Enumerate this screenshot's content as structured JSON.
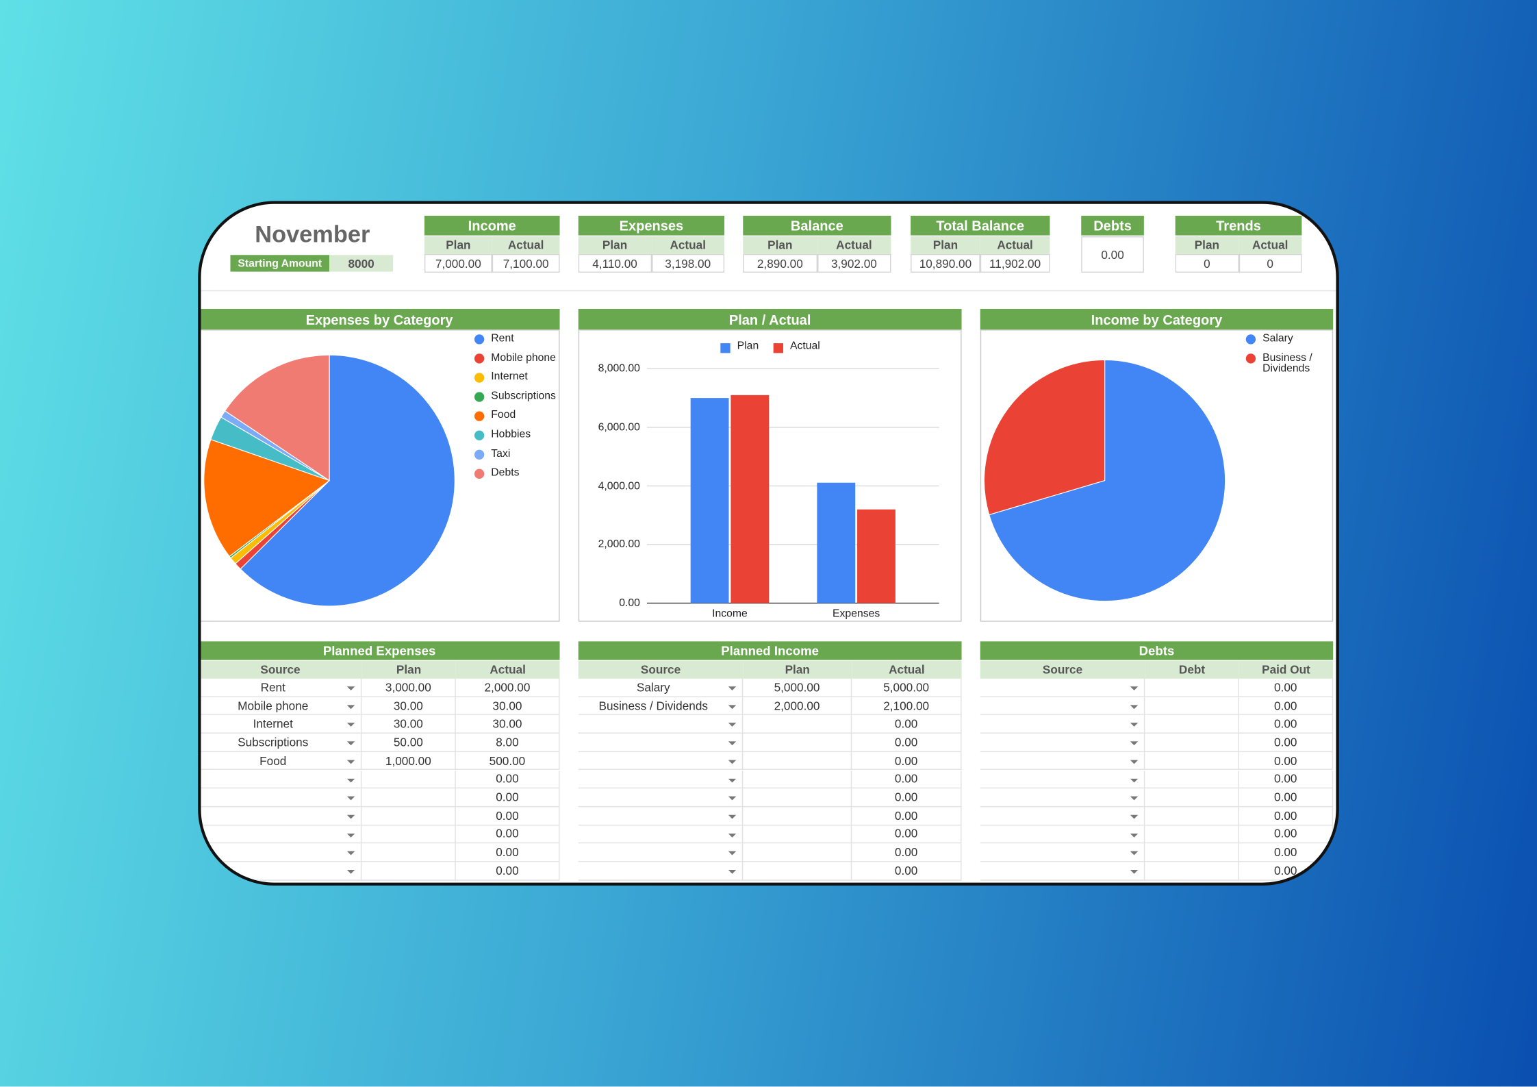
{
  "header": {
    "month": "November",
    "starting_amount_label": "Starting Amount",
    "starting_amount": "8000"
  },
  "summary": [
    {
      "title": "Income",
      "columns": [
        "Plan",
        "Actual"
      ],
      "values": [
        "7,000.00",
        "7,100.00"
      ]
    },
    {
      "title": "Expenses",
      "columns": [
        "Plan",
        "Actual"
      ],
      "values": [
        "4,110.00",
        "3,198.00"
      ]
    },
    {
      "title": "Balance",
      "columns": [
        "Plan",
        "Actual"
      ],
      "values": [
        "2,890.00",
        "3,902.00"
      ]
    },
    {
      "title": "Total Balance",
      "columns": [
        "Plan",
        "Actual"
      ],
      "values": [
        "10,890.00",
        "11,902.00"
      ]
    },
    {
      "title": "Debts",
      "values": [
        "0.00"
      ]
    },
    {
      "title": "Trends",
      "columns": [
        "Plan",
        "Actual"
      ],
      "values": [
        "0",
        "0"
      ]
    }
  ],
  "chart_data": [
    {
      "type": "pie",
      "title": "Expenses by Category",
      "categories": [
        "Rent",
        "Mobile phone",
        "Internet",
        "Subscriptions",
        "Food",
        "Hobbies",
        "Taxi",
        "Debts"
      ],
      "values": [
        2000,
        30,
        30,
        8,
        500,
        100,
        30,
        500
      ],
      "colors": [
        "#4285f4",
        "#ea4335",
        "#fbbc04",
        "#34a853",
        "#ff6d01",
        "#46bdc6",
        "#7baaf7",
        "#f07b72"
      ]
    },
    {
      "type": "bar",
      "title": "Plan / Actual",
      "categories": [
        "Income",
        "Expenses"
      ],
      "series": [
        {
          "name": "Plan",
          "color": "#4285f4",
          "values": [
            7000,
            4110
          ]
        },
        {
          "name": "Actual",
          "color": "#ea4335",
          "values": [
            7100,
            3198
          ]
        }
      ],
      "ylim": [
        0,
        8000
      ],
      "yticks": [
        {
          "value": 0,
          "label": "0.00"
        },
        {
          "value": 2000,
          "label": "2,000.00"
        },
        {
          "value": 4000,
          "label": "4,000.00"
        },
        {
          "value": 6000,
          "label": "6,000.00"
        },
        {
          "value": 8000,
          "label": "8,000.00"
        }
      ],
      "grid": true
    },
    {
      "type": "pie",
      "title": "Income by Category",
      "categories": [
        "Salary",
        "Business / Dividends"
      ],
      "values": [
        5000,
        2100
      ],
      "colors": [
        "#4285f4",
        "#ea4335"
      ]
    }
  ],
  "tables": [
    {
      "title": "Planned Expenses",
      "columns": [
        "Source",
        "Plan",
        "Actual"
      ],
      "rows": [
        [
          "Rent",
          "3,000.00",
          "2,000.00"
        ],
        [
          "Mobile phone",
          "30.00",
          "30.00"
        ],
        [
          "Internet",
          "30.00",
          "30.00"
        ],
        [
          "Subscriptions",
          "50.00",
          "8.00"
        ],
        [
          "Food",
          "1,000.00",
          "500.00"
        ],
        [
          null,
          null,
          "0.00"
        ],
        [
          null,
          null,
          "0.00"
        ],
        [
          null,
          null,
          "0.00"
        ],
        [
          null,
          null,
          "0.00"
        ],
        [
          null,
          null,
          "0.00"
        ],
        [
          null,
          null,
          "0.00"
        ]
      ]
    },
    {
      "title": "Planned Income",
      "columns": [
        "Source",
        "Plan",
        "Actual"
      ],
      "rows": [
        [
          "Salary",
          "5,000.00",
          "5,000.00"
        ],
        [
          "Business / Dividends",
          "2,000.00",
          "2,100.00"
        ],
        [
          null,
          null,
          "0.00"
        ],
        [
          null,
          null,
          "0.00"
        ],
        [
          null,
          null,
          "0.00"
        ],
        [
          null,
          null,
          "0.00"
        ],
        [
          null,
          null,
          "0.00"
        ],
        [
          null,
          null,
          "0.00"
        ],
        [
          null,
          null,
          "0.00"
        ],
        [
          null,
          null,
          "0.00"
        ],
        [
          null,
          null,
          "0.00"
        ]
      ]
    },
    {
      "title": "Debts",
      "columns": [
        "Source",
        "Debt",
        "Paid Out"
      ],
      "rows": [
        [
          null,
          null,
          "0.00"
        ],
        [
          null,
          null,
          "0.00"
        ],
        [
          null,
          null,
          "0.00"
        ],
        [
          null,
          null,
          "0.00"
        ],
        [
          null,
          null,
          "0.00"
        ],
        [
          null,
          null,
          "0.00"
        ],
        [
          null,
          null,
          "0.00"
        ],
        [
          null,
          null,
          "0.00"
        ],
        [
          null,
          null,
          "0.00"
        ],
        [
          null,
          null,
          "0.00"
        ],
        [
          null,
          null,
          "0.00"
        ]
      ]
    }
  ]
}
